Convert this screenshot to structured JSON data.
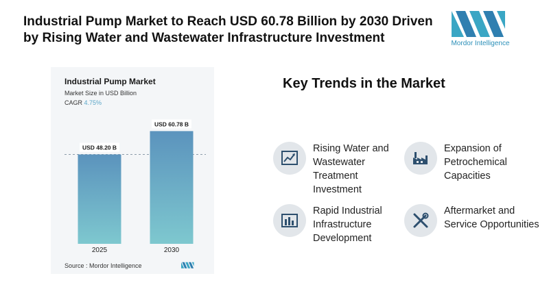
{
  "headline": "Industrial Pump Market to Reach USD 60.78 Billion by 2030 Driven by Rising Water and Wastewater Infrastructure Investment",
  "brand": {
    "name": "Mordor Intelligence",
    "color": "#2b8fb8",
    "logo_color": "#3aa6c4"
  },
  "chart_data": {
    "type": "bar",
    "title": "Industrial Pump Market",
    "subtitle": "Market Size in USD Billion",
    "cagr_label": "CAGR",
    "cagr_value": "4.75%",
    "categories": [
      "2025",
      "2030"
    ],
    "values": [
      48.2,
      60.78
    ],
    "data_labels": [
      "USD 48.20 B",
      "USD 60.78 B"
    ],
    "ylim": [
      0,
      65
    ],
    "grid": false,
    "bar_color_top": "#5b93bd",
    "bar_color_bottom": "#7ec8cf"
  },
  "source": "Source : Mordor Intelligence",
  "trends_title": "Key Trends in the Market",
  "trends": [
    {
      "icon": "line-chart-icon",
      "label": "Rising Water and Wastewater Treatment Investment"
    },
    {
      "icon": "factory-icon",
      "label": "Expansion of Petrochemical Capacities"
    },
    {
      "icon": "bar-chart-icon",
      "label": "Rapid Industrial Infrastructure Development"
    },
    {
      "icon": "tools-icon",
      "label": "Aftermarket and Service Opportunities"
    }
  ],
  "icon_color": "#2d4f6e"
}
